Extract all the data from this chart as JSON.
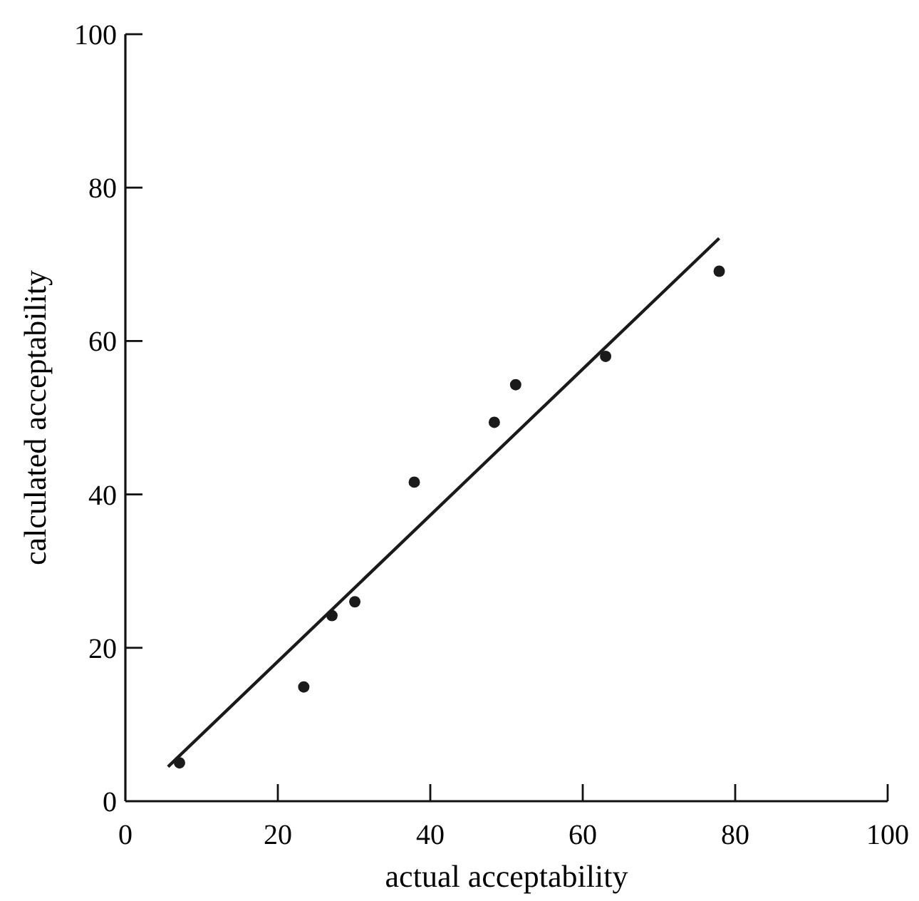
{
  "chart_data": {
    "type": "scatter",
    "xlabel": "actual acceptability",
    "ylabel": "calculated acceptability",
    "xlim": [
      0,
      100
    ],
    "ylim": [
      0,
      100
    ],
    "xticks": [
      0,
      20,
      40,
      60,
      80,
      100
    ],
    "yticks": [
      0,
      20,
      40,
      60,
      80,
      100
    ],
    "grid": false,
    "series": [
      {
        "color": "#1a1a1a",
        "marker": "circle",
        "x": [
          7.1,
          23.4,
          27.1,
          30.1,
          37.9,
          48.4,
          51.2,
          63.0,
          77.9
        ],
        "values": [
          5.0,
          14.9,
          24.2,
          26.0,
          41.6,
          49.4,
          54.3,
          58.0,
          69.1
        ]
      },
      {
        "type": "line",
        "color": "#1a1a1a",
        "marker": "none",
        "line_style": "solid",
        "x": [
          5.6,
          77.9
        ],
        "values": [
          4.5,
          73.4
        ]
      }
    ]
  }
}
